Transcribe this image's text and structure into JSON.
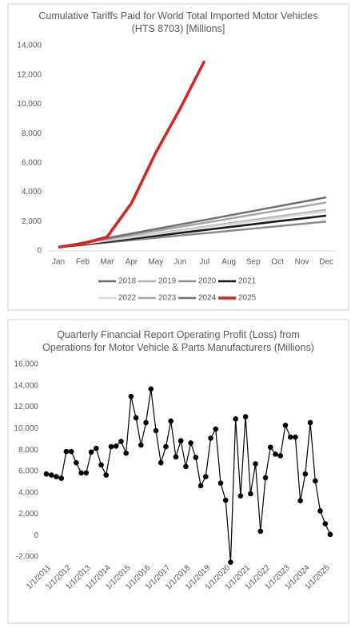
{
  "chart_data": [
    {
      "type": "line",
      "title": "Cumulative Tariffs Paid for World Total Imported Motor Vehicles (HTS 8703) [Millions]",
      "categories": [
        "Jan",
        "Feb",
        "Mar",
        "Apr",
        "May",
        "Jun",
        "Jul",
        "Aug",
        "Sep",
        "Oct",
        "Nov",
        "Dec"
      ],
      "ylim": [
        0,
        14000
      ],
      "yticks": [
        0,
        {
          "value": 2000,
          "label": "2,000"
        },
        {
          "value": 4000,
          "label": "4,000"
        },
        {
          "value": 6000,
          "label": "6,000"
        },
        {
          "value": 8000,
          "label": "8,000"
        },
        {
          "value": 10000,
          "label": "10,000"
        },
        {
          "value": 12000,
          "label": "12,000"
        },
        {
          "value": 14000,
          "label": "14,000"
        }
      ],
      "grid": false,
      "legend": "bottom",
      "series": [
        {
          "name": "2018",
          "color": "#6b6b6b",
          "values": [
            250,
            450,
            640,
            840,
            1030,
            1230,
            1420,
            1620,
            1810,
            2010,
            2200,
            2400
          ]
        },
        {
          "name": "2019",
          "color": "#b0b0b0",
          "values": [
            250,
            480,
            710,
            950,
            1180,
            1410,
            1640,
            1870,
            2110,
            2340,
            2570,
            2800
          ]
        },
        {
          "name": "2020",
          "color": "#8c8c8c",
          "values": [
            250,
            410,
            570,
            730,
            890,
            1050,
            1200,
            1360,
            1520,
            1680,
            1840,
            2000
          ]
        },
        {
          "name": "2021",
          "color": "#1a1a1a",
          "values": [
            250,
            430,
            620,
            820,
            1020,
            1220,
            1420,
            1620,
            1820,
            2020,
            2210,
            2400
          ]
        },
        {
          "name": "2022",
          "color": "#d9d9d9",
          "values": [
            250,
            470,
            700,
            920,
            1140,
            1360,
            1590,
            1810,
            2030,
            2250,
            2480,
            2700
          ]
        },
        {
          "name": "2023",
          "color": "#a6a6a6",
          "values": [
            250,
            530,
            800,
            1080,
            1360,
            1640,
            1910,
            2190,
            2470,
            2750,
            3020,
            3300
          ]
        },
        {
          "name": "2024",
          "color": "#707070",
          "values": [
            250,
            560,
            870,
            1180,
            1490,
            1800,
            2100,
            2410,
            2720,
            3030,
            3340,
            3650
          ]
        },
        {
          "name": "2025",
          "color": "#e0201b",
          "values": [
            250,
            500,
            950,
            3250,
            6700,
            9700,
            12950,
            null,
            null,
            null,
            null,
            null
          ]
        }
      ]
    },
    {
      "type": "line",
      "title": "Quarterly Financial Report Operating Profit (Loss) from Operations for Motor Vehicle & Parts Manufacturers (Millions)",
      "categories": [
        "1/1/2011",
        null,
        null,
        null,
        "1/1/2012",
        null,
        null,
        null,
        "1/1/2013",
        null,
        null,
        null,
        "1/1/2014",
        null,
        null,
        null,
        "1/1/2015",
        null,
        null,
        null,
        "1/1/2016",
        null,
        null,
        null,
        "1/1/2017",
        null,
        null,
        null,
        "1/1/2018",
        null,
        null,
        null,
        "1/1/2019",
        null,
        null,
        null,
        "1/1/2020",
        null,
        null,
        null,
        "1/1/2021",
        null,
        null,
        null,
        "1/1/2022",
        null,
        null,
        null,
        "1/1/2023",
        null,
        null,
        null,
        "1/1/2024",
        null,
        null,
        null,
        "1/1/2025",
        null
      ],
      "ylim": [
        -2000,
        16000
      ],
      "yticks": [
        {
          "value": -2000,
          "label": "-2,000"
        },
        0,
        {
          "value": 2000,
          "label": "2,000"
        },
        {
          "value": 4000,
          "label": "4,000"
        },
        {
          "value": 6000,
          "label": "6,000"
        },
        {
          "value": 8000,
          "label": "8,000"
        },
        {
          "value": 10000,
          "label": "10,000"
        },
        {
          "value": 12000,
          "label": "12,000"
        },
        {
          "value": 14000,
          "label": "14,000"
        },
        {
          "value": 16000,
          "label": "16,000"
        }
      ],
      "grid": false,
      "markers": true,
      "series": [
        {
          "name": null,
          "color": "#000000",
          "values": [
            5750,
            5650,
            5500,
            5350,
            7850,
            7850,
            6800,
            5850,
            5850,
            7800,
            8150,
            6600,
            5650,
            8300,
            8350,
            8800,
            7700,
            13000,
            11000,
            8450,
            10550,
            13700,
            9800,
            6800,
            8300,
            10700,
            7350,
            8850,
            6450,
            8650,
            7300,
            4650,
            5500,
            9100,
            9950,
            4900,
            3300,
            -2500,
            10900,
            3700,
            11100,
            3900,
            6700,
            400,
            5400,
            8250,
            7600,
            7450,
            10300,
            9200,
            9200,
            3250,
            5750,
            10550,
            5100,
            2300,
            1100,
            100
          ]
        }
      ]
    }
  ]
}
